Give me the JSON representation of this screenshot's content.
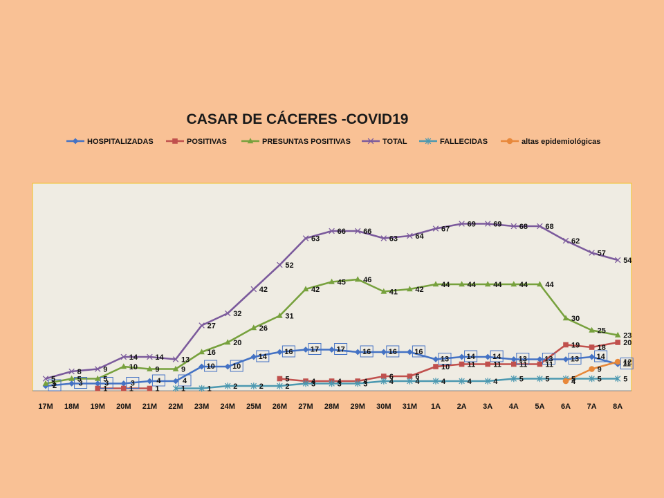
{
  "chart_data": {
    "type": "line",
    "title": "CASAR DE CÁCERES -COVID19",
    "legend_position": "top",
    "grid": false,
    "ylim": [
      0,
      80
    ],
    "categories": [
      "17M",
      "18M",
      "19M",
      "20M",
      "21M",
      "22M",
      "23M",
      "24M",
      "25M",
      "26M",
      "27M",
      "28M",
      "29M",
      "30M",
      "31M",
      "1A",
      "2A",
      "3A",
      "4A",
      "5A",
      "6A",
      "7A",
      "8A"
    ],
    "series": [
      {
        "name": "HOSPITALIZADAS",
        "color": "#4472C4",
        "marker": "diamond",
        "values": [
          2,
          3,
          3,
          3,
          4,
          4,
          10,
          10,
          14,
          16,
          17,
          17,
          16,
          16,
          16,
          13,
          14,
          14,
          13,
          13,
          13,
          14,
          11
        ]
      },
      {
        "name": "POSITIVAS",
        "color": "#C0504D",
        "marker": "square",
        "values": [
          null,
          null,
          1,
          1,
          1,
          null,
          null,
          null,
          null,
          5,
          4,
          4,
          4,
          6,
          6,
          10,
          11,
          11,
          11,
          11,
          19,
          18,
          20
        ]
      },
      {
        "name": "PRESUNTAS POSITIVAS",
        "color": "#77A13D",
        "marker": "triangle",
        "values": [
          3,
          5,
          5,
          10,
          9,
          9,
          16,
          20,
          26,
          31,
          42,
          45,
          46,
          41,
          42,
          44,
          44,
          44,
          44,
          44,
          30,
          25,
          23
        ]
      },
      {
        "name": "TOTAL",
        "color": "#7B5A9C",
        "marker": "x",
        "values": [
          5,
          8,
          9,
          14,
          14,
          13,
          27,
          32,
          42,
          52,
          63,
          66,
          66,
          63,
          64,
          67,
          69,
          69,
          68,
          68,
          62,
          57,
          54
        ]
      },
      {
        "name": "FALLECIDAS",
        "color": "#4B98B0",
        "marker": "star",
        "values": [
          null,
          null,
          null,
          null,
          null,
          1,
          1,
          2,
          2,
          2,
          3,
          3,
          3,
          4,
          4,
          4,
          4,
          4,
          5,
          5,
          5,
          5,
          5
        ]
      },
      {
        "name": "altas epidemiológicas",
        "color": "#E8883A",
        "marker": "circle",
        "values": [
          null,
          null,
          null,
          null,
          null,
          null,
          null,
          null,
          null,
          null,
          null,
          null,
          null,
          null,
          null,
          null,
          null,
          null,
          null,
          null,
          4,
          9,
          12
        ]
      }
    ]
  }
}
